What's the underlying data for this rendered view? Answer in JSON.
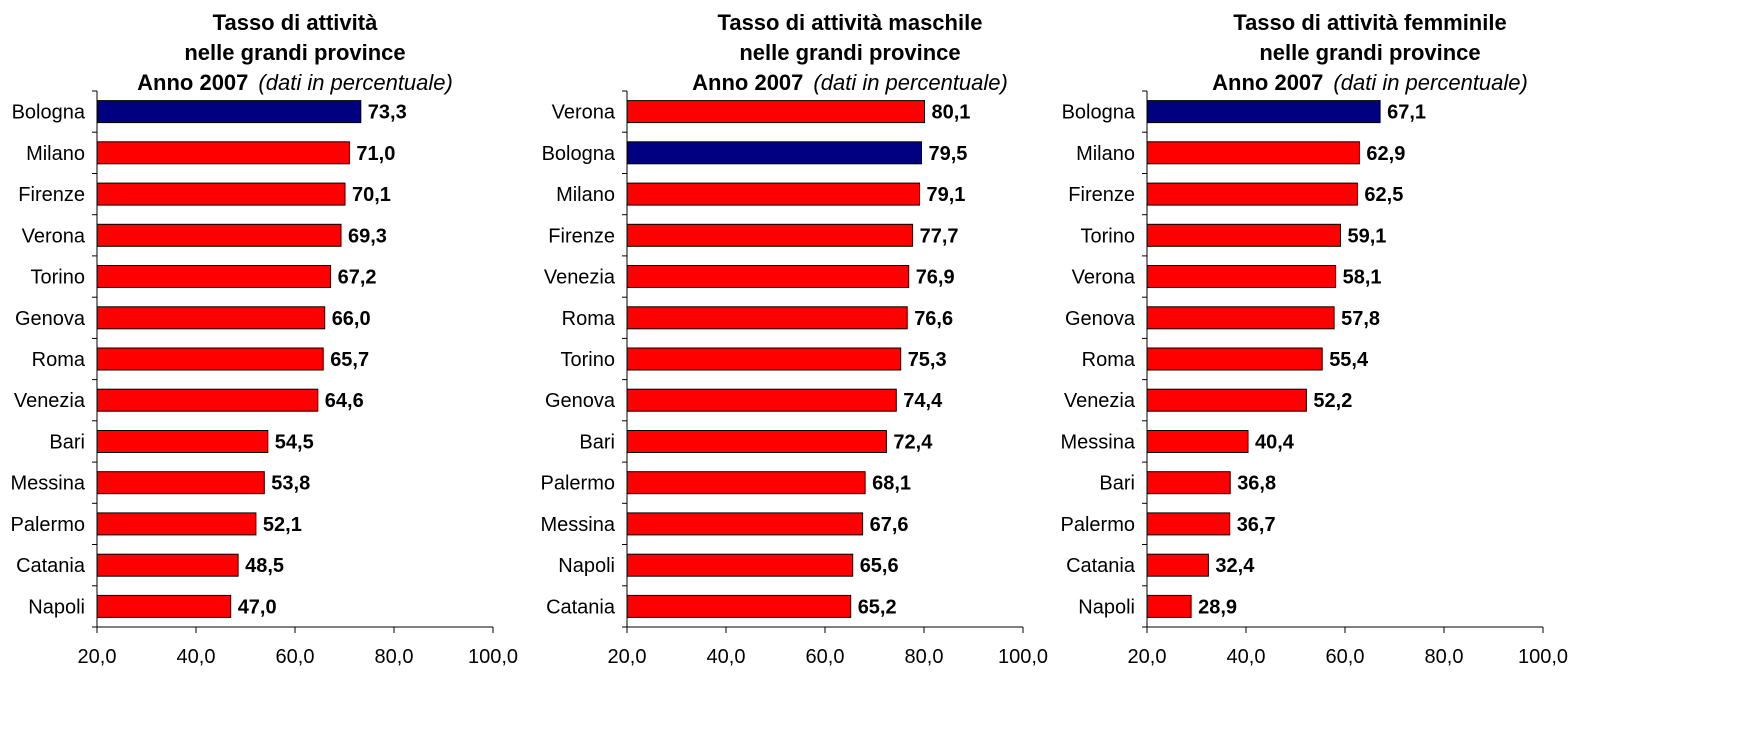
{
  "colors": {
    "highlight": "#000080",
    "default": "#ff0000",
    "axis": "#000000"
  },
  "chart_data": [
    {
      "type": "bar",
      "orientation": "horizontal",
      "title_lines": [
        "Tasso di attività",
        "nelle grandi province"
      ],
      "title_year": "Anno  2007",
      "title_note": "(dati in percentuale)",
      "categories": [
        "Bologna",
        "Milano",
        "Firenze",
        "Verona",
        "Torino",
        "Genova",
        "Roma",
        "Venezia",
        "Bari",
        "Messina",
        "Palermo",
        "Catania",
        "Napoli"
      ],
      "values": [
        73.3,
        71.0,
        70.1,
        69.3,
        67.2,
        66.0,
        65.7,
        64.6,
        54.5,
        53.8,
        52.1,
        48.5,
        47.0
      ],
      "value_labels": [
        "73,3",
        "71,0",
        "70,1",
        "69,3",
        "67,2",
        "66,0",
        "65,7",
        "64,6",
        "54,5",
        "53,8",
        "52,1",
        "48,5",
        "47,0"
      ],
      "highlight": "Bologna",
      "xlim": [
        20,
        100
      ],
      "xticks": [
        "20,0",
        "40,0",
        "60,0",
        "80,0",
        "100,0"
      ],
      "grid": false
    },
    {
      "type": "bar",
      "orientation": "horizontal",
      "title_lines": [
        "Tasso di attività maschile",
        "nelle grandi province"
      ],
      "title_year": "Anno  2007",
      "title_note": "(dati in percentuale)",
      "categories": [
        "Verona",
        "Bologna",
        "Milano",
        "Firenze",
        "Venezia",
        "Roma",
        "Torino",
        "Genova",
        "Bari",
        "Palermo",
        "Messina",
        "Napoli",
        "Catania"
      ],
      "values": [
        80.1,
        79.5,
        79.1,
        77.7,
        76.9,
        76.6,
        75.3,
        74.4,
        72.4,
        68.1,
        67.6,
        65.6,
        65.2
      ],
      "value_labels": [
        "80,1",
        "79,5",
        "79,1",
        "77,7",
        "76,9",
        "76,6",
        "75,3",
        "74,4",
        "72,4",
        "68,1",
        "67,6",
        "65,6",
        "65,2"
      ],
      "highlight": "Bologna",
      "xlim": [
        20,
        100
      ],
      "xticks": [
        "20,0",
        "40,0",
        "60,0",
        "80,0",
        "100,0"
      ],
      "grid": false
    },
    {
      "type": "bar",
      "orientation": "horizontal",
      "title_lines": [
        "Tasso di attività femminile",
        "nelle grandi province"
      ],
      "title_year": "Anno  2007",
      "title_note": "(dati in percentuale)",
      "categories": [
        "Bologna",
        "Milano",
        "Firenze",
        "Torino",
        "Verona",
        "Genova",
        "Roma",
        "Venezia",
        "Messina",
        "Bari",
        "Palermo",
        "Catania",
        "Napoli"
      ],
      "values": [
        67.1,
        62.9,
        62.5,
        59.1,
        58.1,
        57.8,
        55.4,
        52.2,
        40.4,
        36.8,
        36.7,
        32.4,
        28.9
      ],
      "value_labels": [
        "67,1",
        "62,9",
        "62,5",
        "59,1",
        "58,1",
        "57,8",
        "55,4",
        "52,2",
        "40,4",
        "36,8",
        "36,7",
        "32,4",
        "28,9"
      ],
      "highlight": "Bologna",
      "xlim": [
        20,
        100
      ],
      "xticks": [
        "20,0",
        "40,0",
        "60,0",
        "80,0",
        "100,0"
      ],
      "grid": false
    }
  ]
}
